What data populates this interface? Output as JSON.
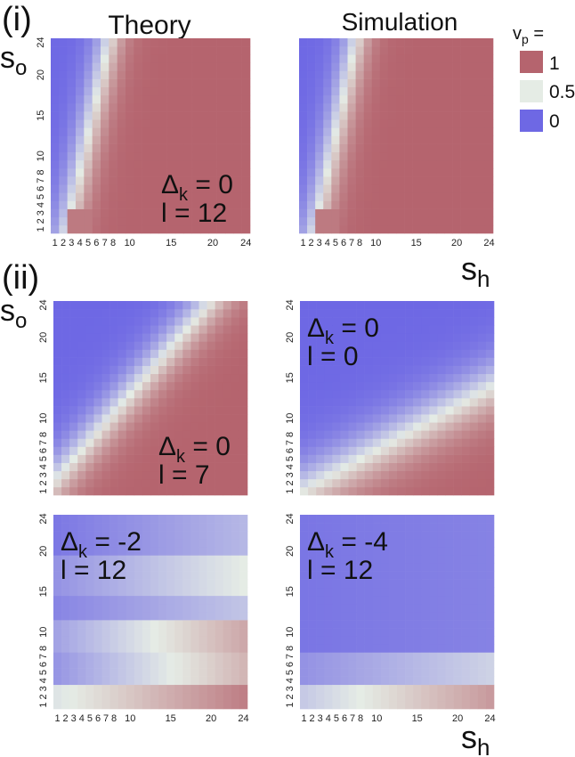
{
  "figure": {
    "section_i": "(i)",
    "section_ii": "(ii)",
    "col_theory": "Theory",
    "col_simulation": "Simulation",
    "ylabel_main": "s",
    "ylabel_sub": "o",
    "xlabel_main": "s",
    "xlabel_sub": "h"
  },
  "legend": {
    "title_main": "v",
    "title_sub": "p",
    "title_suffix": " =",
    "entries": [
      {
        "label": "1",
        "color": "#b5646e"
      },
      {
        "label": "0.5",
        "color": "#e5ece5"
      },
      {
        "label": "0",
        "color": "#6e68e4"
      }
    ]
  },
  "colors": {
    "low": "#6e68e4",
    "mid": "#e5ece5",
    "high": "#b5646e"
  },
  "chart_data": [
    {
      "id": "i-theory",
      "type": "heatmap",
      "model": "theory",
      "delta_k": 0,
      "l": 12,
      "annot_delta": "Δ",
      "annot_sub": "k",
      "annot_delta_val": " = 0",
      "annot_l": "l = 12",
      "x_ticks": [
        "1",
        "2",
        "3",
        "4",
        "5",
        "6",
        "7",
        "8",
        "10",
        "15",
        "20",
        "24"
      ],
      "y_ticks": [
        "1",
        "2",
        "3",
        "4",
        "5",
        "6",
        "7",
        "8",
        "10",
        "15",
        "20",
        "24"
      ],
      "x_range": [
        1,
        24
      ],
      "y_range": [
        1,
        24
      ],
      "value_range": [
        0,
        1
      ]
    },
    {
      "id": "i-sim",
      "type": "heatmap",
      "model": "simulation",
      "delta_k": 0,
      "l": 12,
      "annot_delta": "",
      "annot_sub": "",
      "annot_delta_val": "",
      "annot_l": "",
      "x_ticks": [
        "1",
        "2",
        "3",
        "4",
        "5",
        "6",
        "7",
        "8",
        "10",
        "15",
        "20",
        "24"
      ],
      "y_ticks": [],
      "x_range": [
        1,
        24
      ],
      "y_range": [
        1,
        24
      ],
      "value_range": [
        0,
        1
      ]
    },
    {
      "id": "ii-a",
      "type": "heatmap",
      "model": "diagonal",
      "delta_k": 0,
      "l": 7,
      "annot_delta": "Δ",
      "annot_sub": "k",
      "annot_delta_val": " = 0",
      "annot_l": "l = 7",
      "x_ticks": [],
      "y_ticks": [
        "1",
        "2",
        "3",
        "4",
        "5",
        "6",
        "7",
        "8",
        "10",
        "15",
        "20",
        "24"
      ],
      "x_range": [
        1,
        24
      ],
      "y_range": [
        1,
        24
      ],
      "value_range": [
        0,
        1
      ]
    },
    {
      "id": "ii-b",
      "type": "heatmap",
      "model": "diagonal",
      "delta_k": 0,
      "l": 0,
      "annot_delta": "Δ",
      "annot_sub": "k",
      "annot_delta_val": " = 0",
      "annot_l": "l = 0",
      "x_ticks": [],
      "y_ticks": [
        "1",
        "2",
        "3",
        "4",
        "5",
        "6",
        "7",
        "8",
        "10",
        "15",
        "20",
        "24"
      ],
      "x_range": [
        1,
        24
      ],
      "y_range": [
        1,
        24
      ],
      "value_range": [
        0,
        1
      ]
    },
    {
      "id": "ii-c",
      "type": "heatmap",
      "model": "bands",
      "delta_k": -2,
      "l": 12,
      "annot_delta": "Δ",
      "annot_sub": "k",
      "annot_delta_val": " = -2",
      "annot_l": "l = 12",
      "x_ticks": [
        "1",
        "2",
        "3",
        "4",
        "5",
        "6",
        "7",
        "8",
        "10",
        "15",
        "20",
        "24"
      ],
      "y_ticks": [
        "1",
        "2",
        "3",
        "4",
        "5",
        "6",
        "7",
        "8",
        "10",
        "15",
        "20",
        "24"
      ],
      "x_range": [
        1,
        24
      ],
      "y_range": [
        1,
        24
      ],
      "value_range": [
        0,
        1
      ]
    },
    {
      "id": "ii-d",
      "type": "heatmap",
      "model": "bands",
      "delta_k": -4,
      "l": 12,
      "annot_delta": "Δ",
      "annot_sub": "k",
      "annot_delta_val": " = -4",
      "annot_l": "l = 12",
      "x_ticks": [
        "1",
        "2",
        "3",
        "4",
        "5",
        "6",
        "7",
        "8",
        "10",
        "15",
        "20",
        "24"
      ],
      "y_ticks": [
        "1",
        "2",
        "3",
        "4",
        "5",
        "6",
        "7",
        "8",
        "10",
        "15",
        "20",
        "24"
      ],
      "x_range": [
        1,
        24
      ],
      "y_range": [
        1,
        24
      ],
      "value_range": [
        0,
        1
      ]
    }
  ]
}
